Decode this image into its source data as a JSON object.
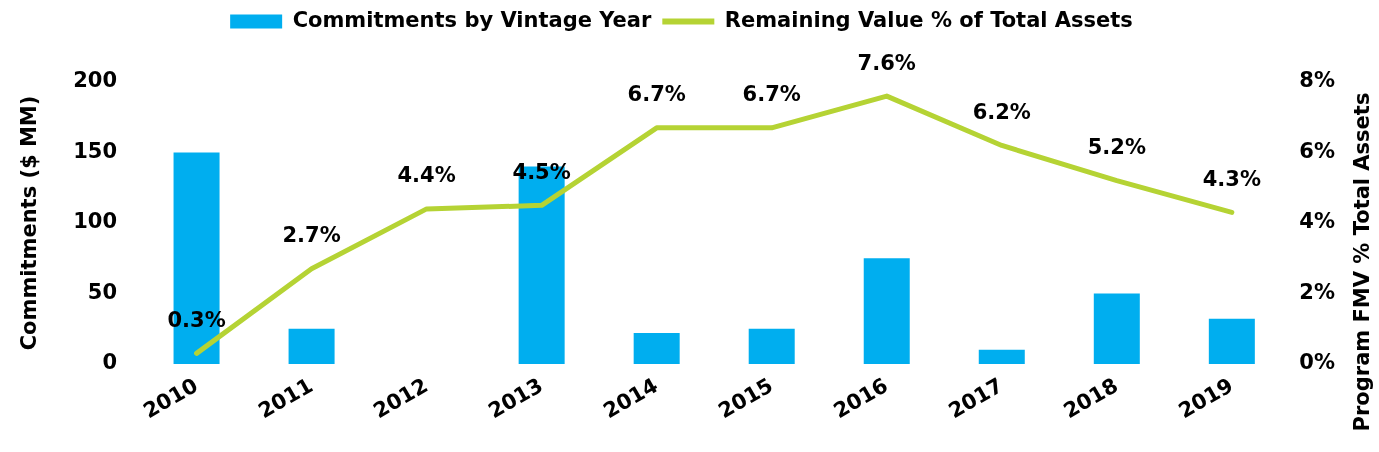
{
  "chart_data": {
    "type": "bar",
    "categories": [
      "2010",
      "2011",
      "2012",
      "2013",
      "2014",
      "2015",
      "2016",
      "2017",
      "2018",
      "2019"
    ],
    "ylabel": "Commitments ($ MM)",
    "y2label": "Program FMV % Total Assets",
    "ylim": [
      0,
      200
    ],
    "yticks": [
      0,
      50,
      100,
      150,
      200
    ],
    "y2lim": [
      0,
      8
    ],
    "y2ticks": [
      {
        "value": 0,
        "label": "0%"
      },
      {
        "value": 2,
        "label": "2%"
      },
      {
        "value": 4,
        "label": "4%"
      },
      {
        "value": 6,
        "label": "6%"
      },
      {
        "value": 8,
        "label": "8%"
      }
    ],
    "series": [
      {
        "name": "Commitments by Vintage Year",
        "color": "#00aeef",
        "values": [
          150,
          25,
          0,
          140,
          22,
          25,
          75,
          10,
          50,
          32
        ]
      },
      {
        "name": "Remaining Value % of Total Assets",
        "type": "line",
        "axis": "y2",
        "color": "#b5d334",
        "values": [
          0.3,
          2.7,
          4.4,
          4.5,
          6.7,
          6.7,
          7.6,
          6.2,
          5.2,
          4.3
        ],
        "value_labels": [
          "0.3%",
          "2.7%",
          "4.4%",
          "4.5%",
          "6.7%",
          "6.7%",
          "7.6%",
          "6.2%",
          "5.2%",
          "4.3%"
        ]
      }
    ],
    "legend": "top",
    "grid": false,
    "marker": "none",
    "line_style": "solid"
  }
}
